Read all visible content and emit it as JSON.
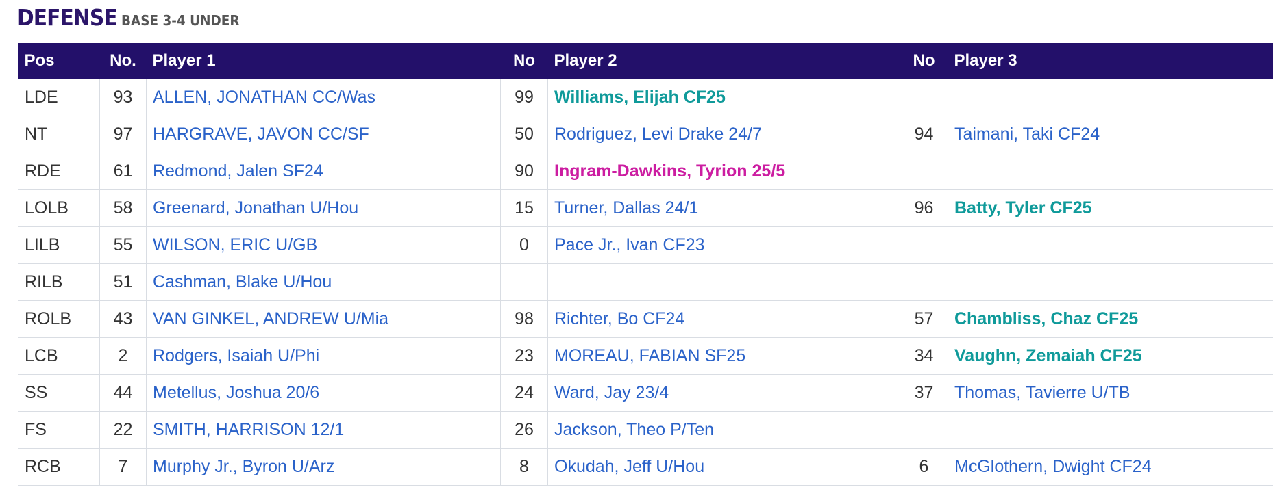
{
  "title": {
    "main": "DEFENSE",
    "sub": "BASE 3-4 UNDER"
  },
  "headers": {
    "pos": "Pos",
    "no1": "No.",
    "player1": "Player 1",
    "no2": "No",
    "player2": "Player 2",
    "no3": "No",
    "player3": "Player 3"
  },
  "colors": {
    "header_bg": "#23106a",
    "link": "#2a62c9",
    "teal": "#0f9a9a",
    "magenta": "#cc1da1"
  },
  "rows": [
    {
      "pos": "LDE",
      "no1": "93",
      "p1": "ALLEN, JONATHAN CC/Was",
      "p1_style": "link",
      "no2": "99",
      "p2": "Williams, Elijah CF25",
      "p2_style": "teal",
      "no3": "",
      "p3": "",
      "p3_style": "link"
    },
    {
      "pos": "NT",
      "no1": "97",
      "p1": "HARGRAVE, JAVON CC/SF",
      "p1_style": "link",
      "no2": "50",
      "p2": "Rodriguez, Levi Drake 24/7",
      "p2_style": "link",
      "no3": "94",
      "p3": "Taimani, Taki CF24",
      "p3_style": "link"
    },
    {
      "pos": "RDE",
      "no1": "61",
      "p1": "Redmond, Jalen SF24",
      "p1_style": "link",
      "no2": "90",
      "p2": "Ingram-Dawkins, Tyrion 25/5",
      "p2_style": "magenta",
      "no3": "",
      "p3": "",
      "p3_style": "link"
    },
    {
      "pos": "LOLB",
      "no1": "58",
      "p1": "Greenard, Jonathan U/Hou",
      "p1_style": "link",
      "no2": "15",
      "p2": "Turner, Dallas 24/1",
      "p2_style": "link",
      "no3": "96",
      "p3": "Batty, Tyler CF25",
      "p3_style": "teal"
    },
    {
      "pos": "LILB",
      "no1": "55",
      "p1": "WILSON, ERIC U/GB",
      "p1_style": "link",
      "no2": "0",
      "p2": "Pace Jr., Ivan CF23",
      "p2_style": "link",
      "no3": "",
      "p3": "",
      "p3_style": "link"
    },
    {
      "pos": "RILB",
      "no1": "51",
      "p1": "Cashman, Blake U/Hou",
      "p1_style": "link",
      "no2": "",
      "p2": "",
      "p2_style": "link",
      "no3": "",
      "p3": "",
      "p3_style": "link"
    },
    {
      "pos": "ROLB",
      "no1": "43",
      "p1": "VAN GINKEL, ANDREW U/Mia",
      "p1_style": "link",
      "no2": "98",
      "p2": "Richter, Bo CF24",
      "p2_style": "link",
      "no3": "57",
      "p3": "Chambliss, Chaz CF25",
      "p3_style": "teal"
    },
    {
      "pos": "LCB",
      "no1": "2",
      "p1": "Rodgers, Isaiah U/Phi",
      "p1_style": "link",
      "no2": "23",
      "p2": "MOREAU, FABIAN SF25",
      "p2_style": "link",
      "no3": "34",
      "p3": "Vaughn, Zemaiah CF25",
      "p3_style": "teal"
    },
    {
      "pos": "SS",
      "no1": "44",
      "p1": "Metellus, Joshua 20/6",
      "p1_style": "link",
      "no2": "24",
      "p2": "Ward, Jay 23/4",
      "p2_style": "link",
      "no3": "37",
      "p3": "Thomas, Tavierre U/TB",
      "p3_style": "link"
    },
    {
      "pos": "FS",
      "no1": "22",
      "p1": "SMITH, HARRISON 12/1",
      "p1_style": "link",
      "no2": "26",
      "p2": "Jackson, Theo P/Ten",
      "p2_style": "link",
      "no3": "",
      "p3": "",
      "p3_style": "link"
    },
    {
      "pos": "RCB",
      "no1": "7",
      "p1": "Murphy Jr., Byron U/Arz",
      "p1_style": "link",
      "no2": "8",
      "p2": "Okudah, Jeff U/Hou",
      "p2_style": "link",
      "no3": "6",
      "p3": "McGlothern, Dwight CF24",
      "p3_style": "link"
    }
  ]
}
